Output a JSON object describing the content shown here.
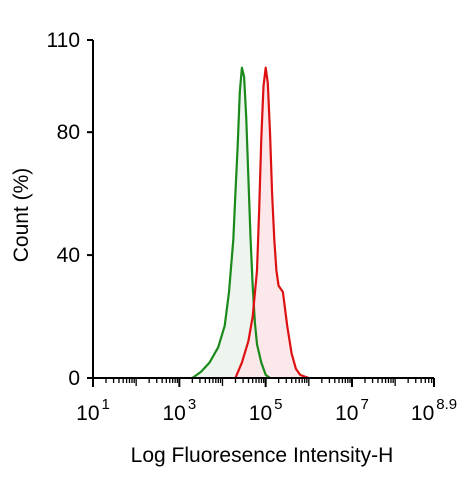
{
  "chart_data": {
    "type": "area",
    "title": "",
    "xlabel": "Log Fluoresence Intensity-H",
    "ylabel": "Count  (%)",
    "x_scale": "log10",
    "xlim": [
      1,
      8.9
    ],
    "ylim": [
      0,
      110
    ],
    "x_tick_labels": [
      {
        "base": "10",
        "exp": "1"
      },
      {
        "base": "10",
        "exp": "3"
      },
      {
        "base": "10",
        "exp": "5"
      },
      {
        "base": "10",
        "exp": "7"
      },
      {
        "base": "10",
        "exp": "8.9"
      }
    ],
    "x_ticks": [
      1,
      3,
      5,
      7,
      8.9
    ],
    "y_tick_labels": [
      "0",
      "40",
      "80",
      "110"
    ],
    "y_ticks": [
      0,
      40,
      80,
      110
    ],
    "grid": false,
    "legend": "none",
    "series": [
      {
        "color": "#1a8a1a",
        "fill": "#ebf3eb",
        "x": [
          3.3,
          3.5,
          3.7,
          3.9,
          4.05,
          4.15,
          4.25,
          4.3,
          4.35,
          4.4,
          4.45,
          4.5,
          4.55,
          4.6,
          4.65,
          4.7,
          4.75,
          4.8,
          4.9,
          5.0,
          5.1
        ],
        "y": [
          0,
          2,
          5,
          10,
          17,
          28,
          45,
          60,
          75,
          93,
          101,
          98,
          85,
          65,
          45,
          30,
          18,
          11,
          5,
          1,
          0
        ]
      },
      {
        "color": "#dd1111",
        "fill": "#fbe4e6",
        "x": [
          4.3,
          4.45,
          4.6,
          4.7,
          4.8,
          4.85,
          4.9,
          4.95,
          5.0,
          5.05,
          5.1,
          5.15,
          5.2,
          5.25,
          5.3,
          5.4,
          5.5,
          5.6,
          5.7,
          5.8,
          5.9,
          6.0
        ],
        "y": [
          0,
          5,
          12,
          20,
          35,
          55,
          78,
          95,
          101,
          96,
          80,
          60,
          45,
          35,
          30,
          28,
          17,
          8,
          3,
          1,
          0.5,
          0
        ]
      }
    ]
  }
}
